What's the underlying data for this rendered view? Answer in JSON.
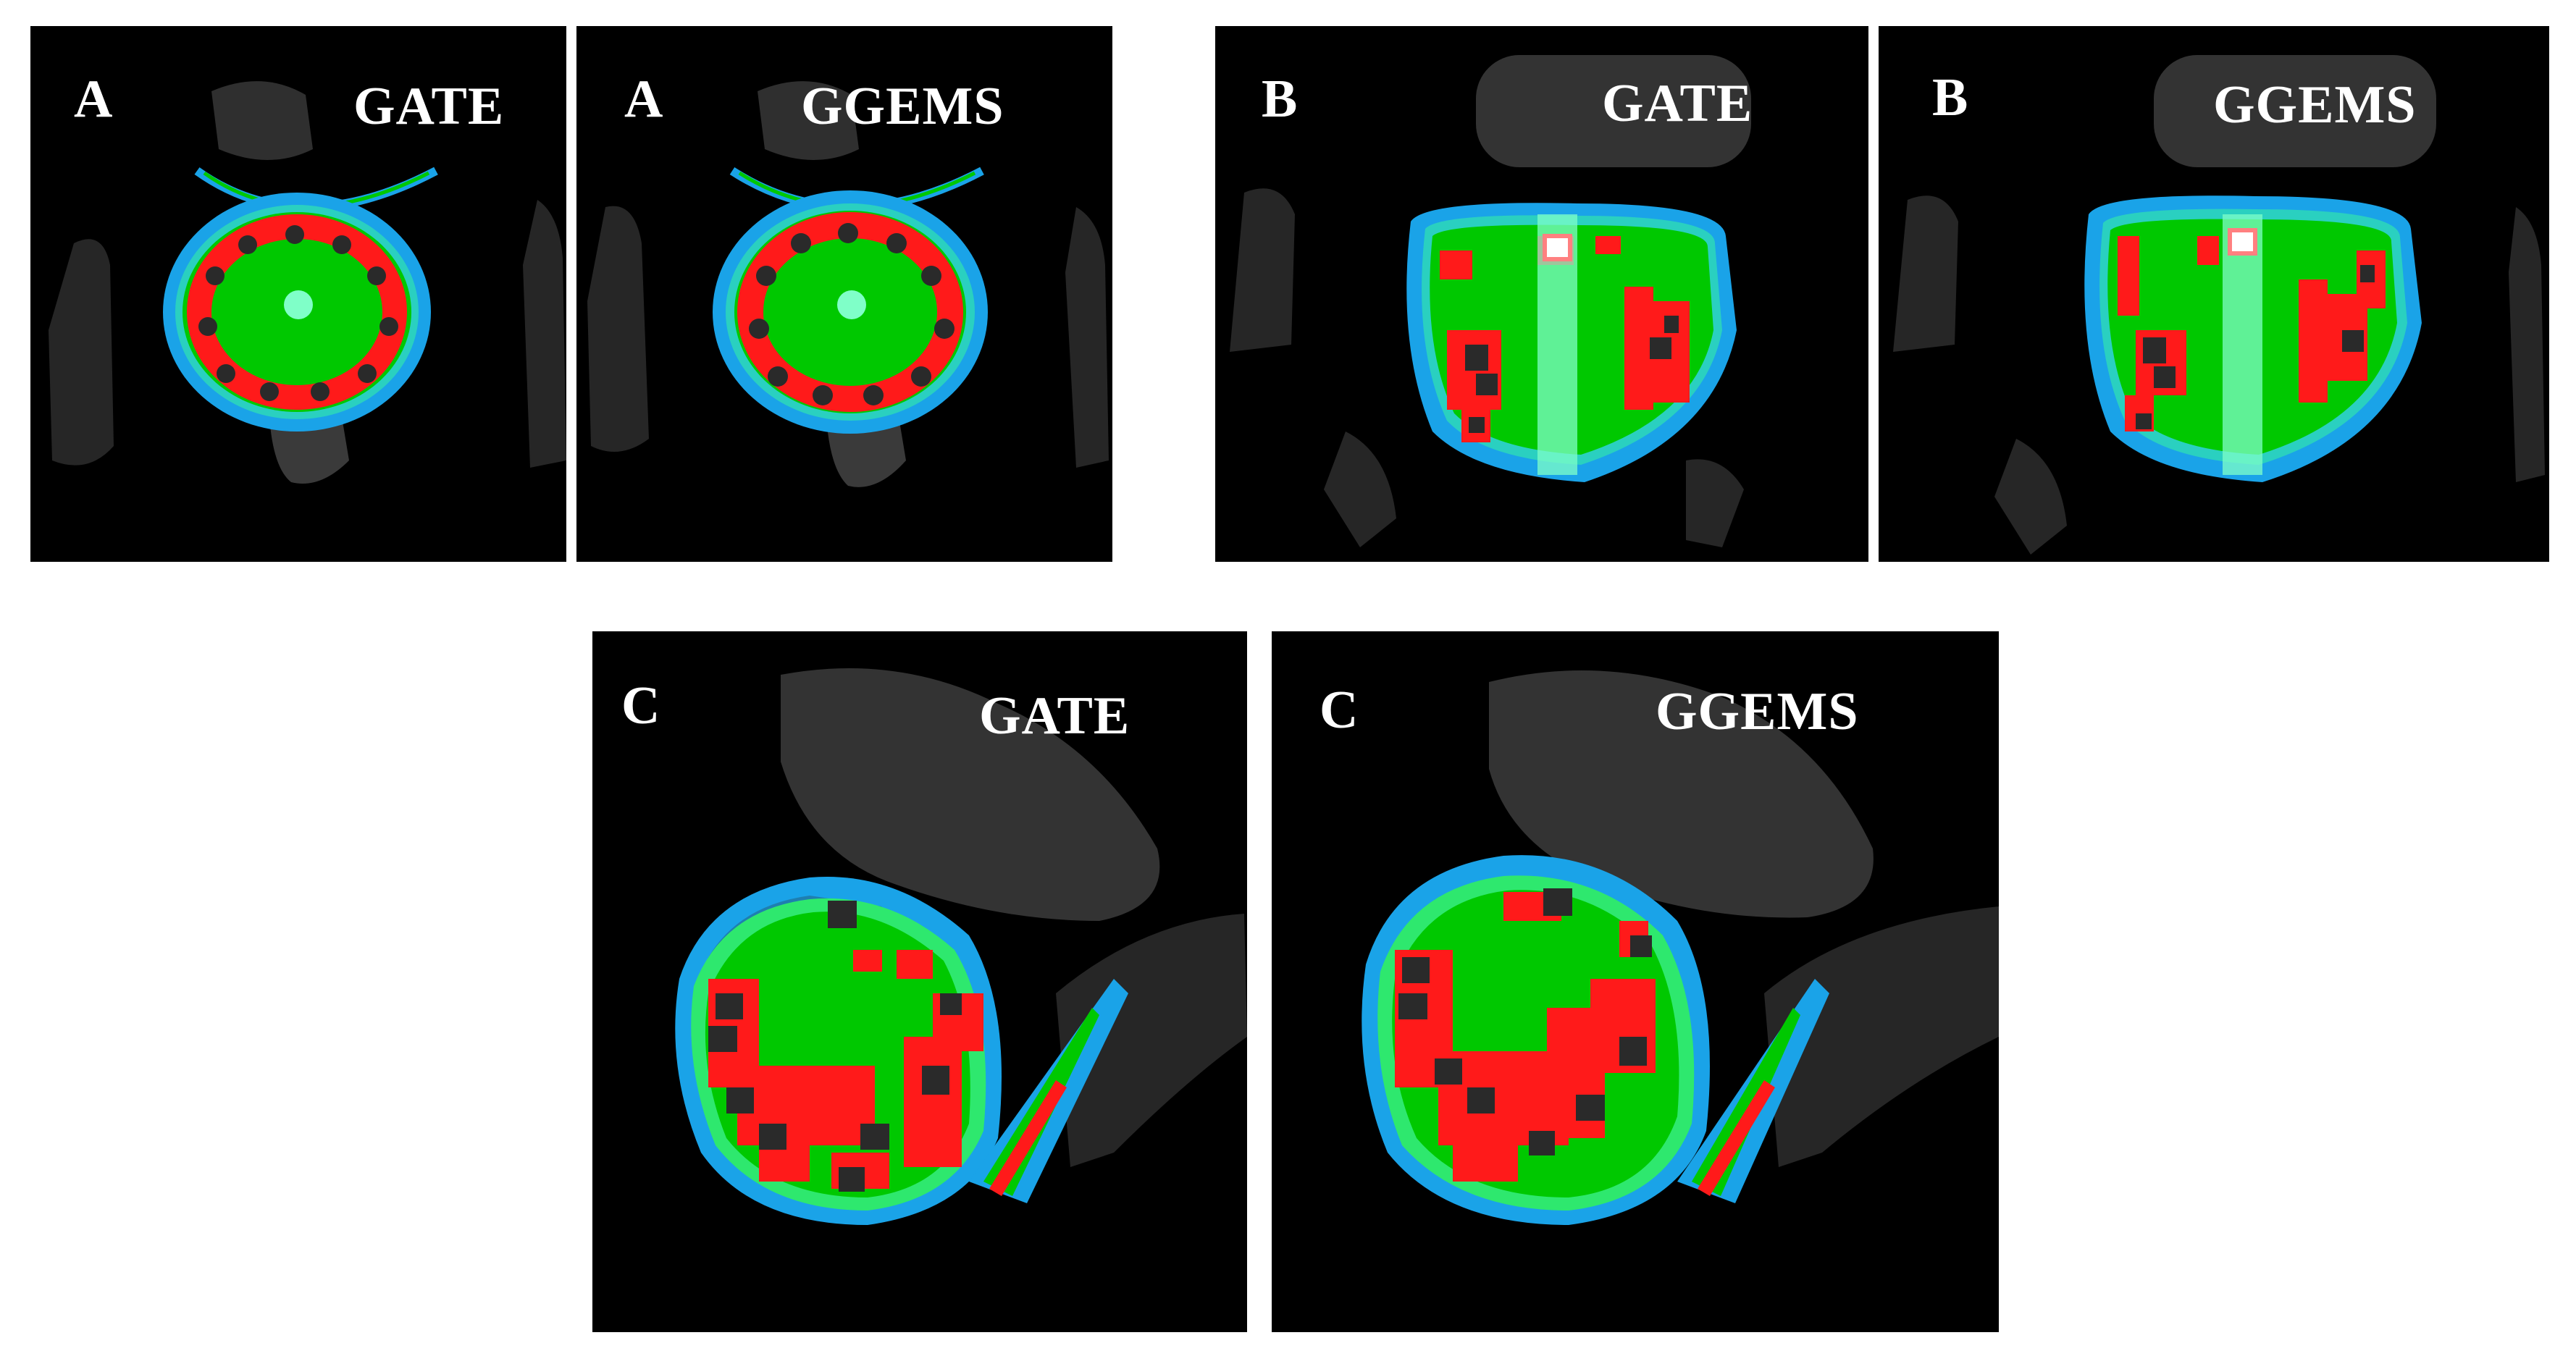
{
  "figure": {
    "panels": [
      {
        "id": "A-GATE",
        "letter": "A",
        "method": "GATE"
      },
      {
        "id": "A-GGEMS",
        "letter": "A",
        "method": "GGEMS"
      },
      {
        "id": "B-GATE",
        "letter": "B",
        "method": "GATE"
      },
      {
        "id": "B-GGEMS",
        "letter": "B",
        "method": "GGEMS"
      },
      {
        "id": "C-GATE",
        "letter": "C",
        "method": "GATE"
      },
      {
        "id": "C-GGEMS",
        "letter": "C",
        "method": "GGEMS"
      }
    ]
  },
  "colors": {
    "background": "#000000",
    "organ": "#2f2f2f",
    "level_low": "#1aa3e8",
    "level_mid_low": "#2ad0c0",
    "level_mid": "#00c800",
    "level_high": "#ff1a1a",
    "seed": "#2a2a2a",
    "catheter": "#7fffc8"
  },
  "icons": {
    "image_kind": "dose-map"
  }
}
